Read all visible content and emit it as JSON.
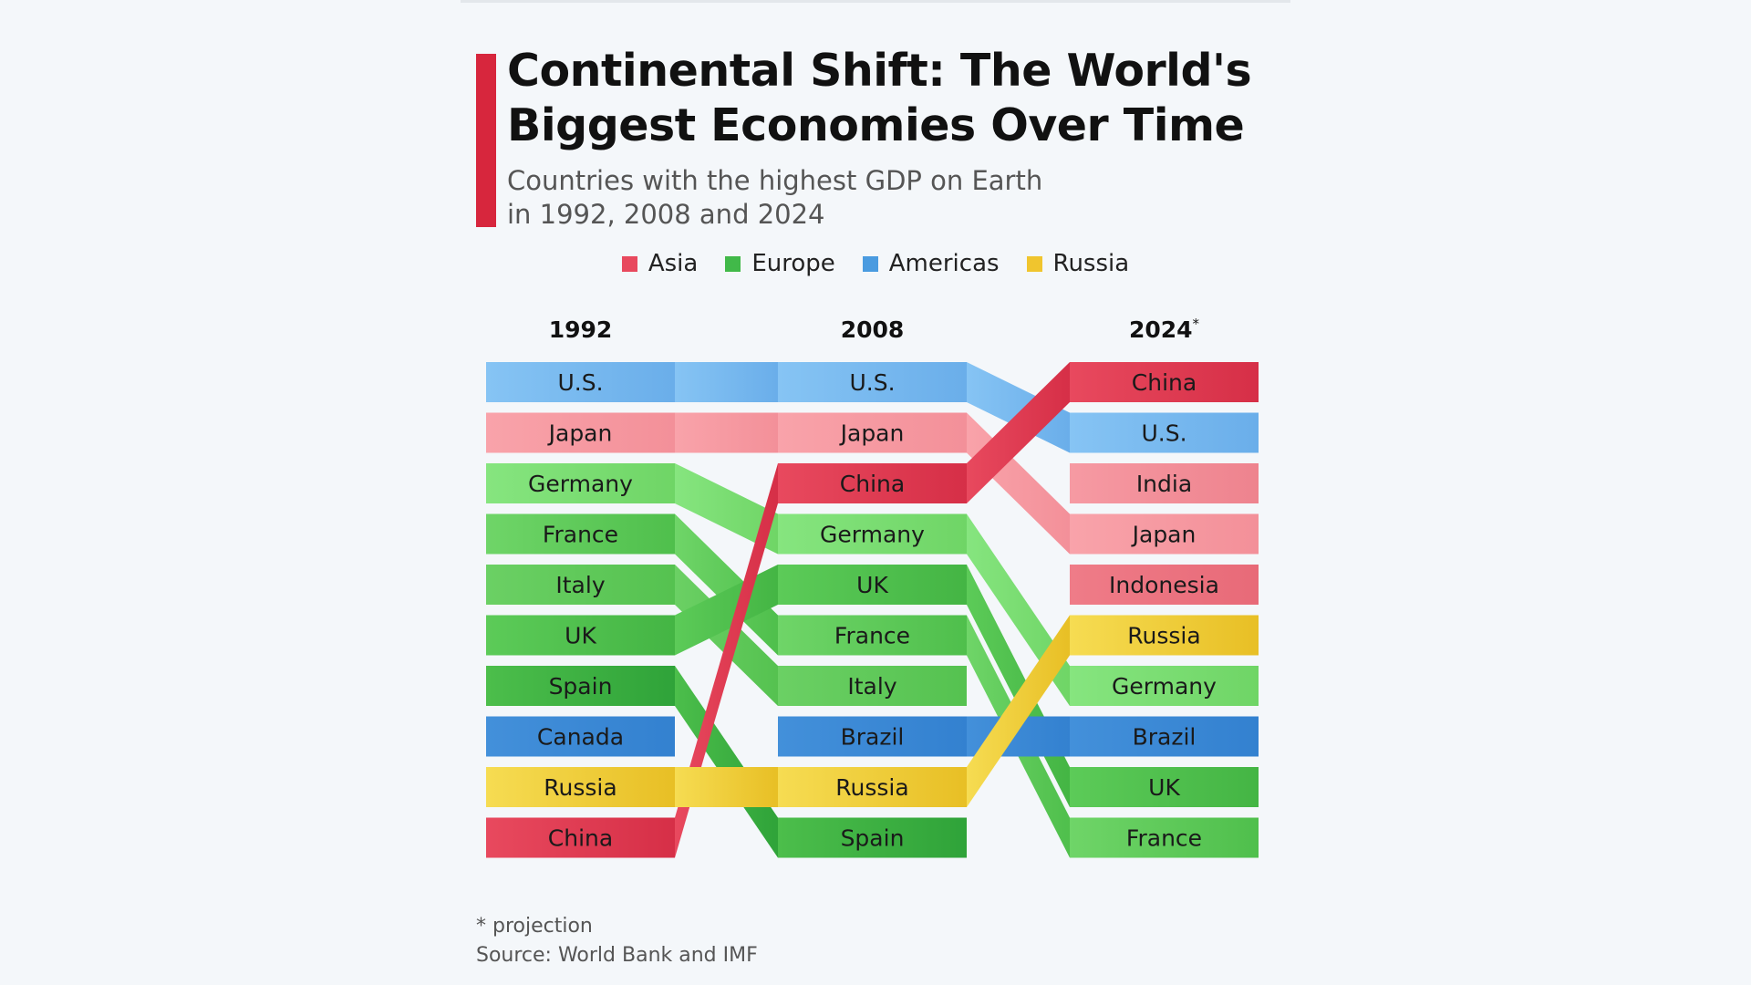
{
  "title": "Continental Shift: The World's Biggest Economies Over Time",
  "subtitle_line1": "Countries with the highest GDP on Earth",
  "subtitle_line2": "in 1992, 2008 and 2024",
  "legend": [
    {
      "label": "Asia",
      "color": "#e8495e"
    },
    {
      "label": "Europe",
      "color": "#41b949"
    },
    {
      "label": "Americas",
      "color": "#4a9be0"
    },
    {
      "label": "Russia",
      "color": "#f0c52e"
    }
  ],
  "footnote": "* projection",
  "source": "Source: World Bank and IMF",
  "chart_data": {
    "type": "table",
    "description_kind": "ranking bump chart",
    "columns": [
      {
        "label": "1992",
        "asterisk": false
      },
      {
        "label": "2008",
        "asterisk": false
      },
      {
        "label": "2024",
        "asterisk": true
      }
    ],
    "rankings": [
      [
        "U.S.",
        "Japan",
        "Germany",
        "France",
        "Italy",
        "UK",
        "Spain",
        "Canada",
        "Russia",
        "China"
      ],
      [
        "U.S.",
        "Japan",
        "China",
        "Germany",
        "UK",
        "France",
        "Italy",
        "Brazil",
        "Russia",
        "Spain"
      ],
      [
        "China",
        "U.S.",
        "India",
        "Japan",
        "Indonesia",
        "Russia",
        "Germany",
        "Brazil",
        "UK",
        "France"
      ]
    ],
    "region_of": {
      "U.S.": "Americas",
      "Canada": "Americas",
      "Brazil": "Americas",
      "Japan": "Asia",
      "China": "Asia",
      "India": "Asia",
      "Indonesia": "Asia",
      "Germany": "Europe",
      "France": "Europe",
      "Italy": "Europe",
      "UK": "Europe",
      "Spain": "Europe",
      "Russia": "Russia"
    },
    "colors": {
      "U.S.": [
        "#86c4f4",
        "#6aaeea"
      ],
      "Canada": [
        "#4390da",
        "#3381d0"
      ],
      "Brazil": [
        "#4390da",
        "#3381d0"
      ],
      "Japan": [
        "#f9a3aa",
        "#f39099"
      ],
      "India": [
        "#f69aa3",
        "#ee838e"
      ],
      "Indonesia": [
        "#ef7c88",
        "#e86a78"
      ],
      "China": [
        "#e8495e",
        "#d62f47"
      ],
      "Germany": [
        "#86e57f",
        "#6fd566"
      ],
      "France": [
        "#6fd568",
        "#4fbf4c"
      ],
      "Italy": [
        "#6bd064",
        "#55c250"
      ],
      "UK": [
        "#5ccb58",
        "#44b544"
      ],
      "Spain": [
        "#4cbe4b",
        "#2fa339"
      ],
      "Russia": [
        "#f6dc52",
        "#e8bf25"
      ]
    }
  }
}
